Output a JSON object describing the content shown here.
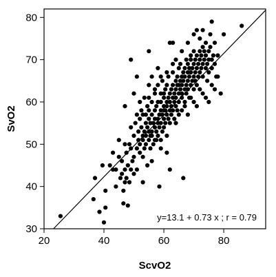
{
  "chart_data": {
    "type": "scatter",
    "xlabel": "ScvO2",
    "ylabel": "SvO2",
    "xlim": [
      20,
      94
    ],
    "ylim": [
      30,
      82
    ],
    "xticks": [
      20,
      40,
      60,
      80
    ],
    "yticks": [
      30,
      40,
      50,
      60,
      70,
      80
    ],
    "grid": false,
    "annotation": "y=13.1 + 0.73 x ; r = 0.79",
    "fit_line": {
      "intercept": 13.1,
      "slope": 0.73
    },
    "colors": {
      "points": "#000000",
      "line": "#000000",
      "frame": "#000000"
    },
    "points": [
      [
        25.5,
        33
      ],
      [
        36.5,
        37
      ],
      [
        37,
        42
      ],
      [
        38.5,
        34
      ],
      [
        39.5,
        45
      ],
      [
        40,
        31.5
      ],
      [
        40.5,
        39
      ],
      [
        40.5,
        35
      ],
      [
        42,
        45
      ],
      [
        43,
        44
      ],
      [
        44,
        44
      ],
      [
        44,
        40
      ],
      [
        45,
        47
      ],
      [
        45.5,
        42
      ],
      [
        46,
        43
      ],
      [
        46,
        46
      ],
      [
        46.5,
        36
      ],
      [
        46.5,
        39
      ],
      [
        47,
        44
      ],
      [
        47,
        41
      ],
      [
        47.5,
        48
      ],
      [
        47.5,
        42
      ],
      [
        48,
        35.5
      ],
      [
        48,
        45
      ],
      [
        48.5,
        50
      ],
      [
        48.5,
        41
      ],
      [
        49,
        49
      ],
      [
        49,
        70
      ],
      [
        49,
        44
      ],
      [
        49.5,
        46
      ],
      [
        50,
        43
      ],
      [
        50,
        47
      ],
      [
        50,
        52
      ],
      [
        50.5,
        55
      ],
      [
        51,
        49
      ],
      [
        51,
        44
      ],
      [
        51,
        66
      ],
      [
        51.5,
        51
      ],
      [
        51.5,
        53
      ],
      [
        52,
        56
      ],
      [
        52,
        48
      ],
      [
        52,
        50
      ],
      [
        52.5,
        54
      ],
      [
        52.5,
        58
      ],
      [
        53,
        52
      ],
      [
        53,
        47
      ],
      [
        53,
        57
      ],
      [
        53,
        51
      ],
      [
        53.5,
        53
      ],
      [
        53.5,
        49
      ],
      [
        53.5,
        61
      ],
      [
        54,
        55
      ],
      [
        54,
        50
      ],
      [
        54,
        52
      ],
      [
        54,
        57
      ],
      [
        54.5,
        54
      ],
      [
        54.5,
        59
      ],
      [
        54.5,
        45
      ],
      [
        55,
        53
      ],
      [
        55,
        56
      ],
      [
        55,
        51
      ],
      [
        55,
        58
      ],
      [
        55,
        64
      ],
      [
        55.5,
        52
      ],
      [
        55.5,
        55
      ],
      [
        55.5,
        49
      ],
      [
        56,
        57
      ],
      [
        56,
        53
      ],
      [
        56,
        60
      ],
      [
        56,
        46
      ],
      [
        56,
        52
      ],
      [
        56.5,
        50
      ],
      [
        56.5,
        55
      ],
      [
        57,
        58
      ],
      [
        57,
        54
      ],
      [
        57,
        56
      ],
      [
        57,
        62
      ],
      [
        57.5,
        51
      ],
      [
        57.5,
        59
      ],
      [
        57.5,
        53
      ],
      [
        58,
        56
      ],
      [
        58,
        60
      ],
      [
        58,
        52
      ],
      [
        58,
        55
      ],
      [
        58,
        64
      ],
      [
        58.5,
        57
      ],
      [
        58.5,
        54
      ],
      [
        58.5,
        40
      ],
      [
        59,
        58
      ],
      [
        59,
        62
      ],
      [
        59,
        55
      ],
      [
        59,
        51
      ],
      [
        59,
        60
      ],
      [
        59.5,
        57
      ],
      [
        59.5,
        53
      ],
      [
        59.5,
        65
      ],
      [
        60,
        59
      ],
      [
        60,
        56
      ],
      [
        60,
        61
      ],
      [
        60,
        54
      ],
      [
        60,
        62
      ],
      [
        60.5,
        58
      ],
      [
        60.5,
        63
      ],
      [
        60.5,
        55
      ],
      [
        61,
        60
      ],
      [
        61,
        57
      ],
      [
        61,
        64
      ],
      [
        61,
        52
      ],
      [
        61,
        59
      ],
      [
        61.5,
        61
      ],
      [
        61.5,
        56
      ],
      [
        61.5,
        66
      ],
      [
        62,
        58
      ],
      [
        62,
        62
      ],
      [
        62,
        60
      ],
      [
        62,
        55
      ],
      [
        62.5,
        63
      ],
      [
        62.5,
        59
      ],
      [
        62.5,
        57
      ],
      [
        63,
        61
      ],
      [
        63,
        64
      ],
      [
        63,
        58
      ],
      [
        63,
        67
      ],
      [
        63,
        74
      ],
      [
        63.5,
        60
      ],
      [
        63.5,
        62
      ],
      [
        63.5,
        56
      ],
      [
        64,
        63
      ],
      [
        64,
        65
      ],
      [
        64,
        59
      ],
      [
        64,
        61
      ],
      [
        64.5,
        64
      ],
      [
        64.5,
        66
      ],
      [
        64.5,
        58
      ],
      [
        65,
        62
      ],
      [
        65,
        68
      ],
      [
        65,
        60
      ],
      [
        65,
        64
      ],
      [
        65.5,
        65
      ],
      [
        65.5,
        63
      ],
      [
        65.5,
        69
      ],
      [
        66,
        66
      ],
      [
        66,
        61
      ],
      [
        66,
        64
      ],
      [
        66,
        62
      ],
      [
        66.5,
        67
      ],
      [
        66.5,
        65
      ],
      [
        66.5,
        42
      ],
      [
        67,
        63
      ],
      [
        67,
        68
      ],
      [
        67,
        60
      ],
      [
        67,
        66
      ],
      [
        67.5,
        64
      ],
      [
        67.5,
        70
      ],
      [
        67.5,
        62
      ],
      [
        68,
        67
      ],
      [
        68,
        65
      ],
      [
        68,
        69
      ],
      [
        68,
        63
      ],
      [
        68.5,
        66
      ],
      [
        68.5,
        68
      ],
      [
        68.5,
        61
      ],
      [
        69,
        70
      ],
      [
        69,
        64
      ],
      [
        69,
        67
      ],
      [
        69,
        71
      ],
      [
        69.5,
        65
      ],
      [
        69.5,
        68
      ],
      [
        70,
        66
      ],
      [
        70,
        69
      ],
      [
        70,
        72
      ],
      [
        70,
        63
      ],
      [
        70.5,
        67
      ],
      [
        70.5,
        70
      ],
      [
        70.5,
        65
      ],
      [
        71,
        68
      ],
      [
        71,
        77
      ],
      [
        71,
        71
      ],
      [
        71,
        64
      ],
      [
        71.5,
        66
      ],
      [
        71.5,
        69
      ],
      [
        72,
        72
      ],
      [
        72,
        67
      ],
      [
        72,
        70
      ],
      [
        72,
        75
      ],
      [
        72.5,
        68
      ],
      [
        72.5,
        71
      ],
      [
        73,
        66
      ],
      [
        73,
        73
      ],
      [
        73,
        69
      ],
      [
        73,
        77
      ],
      [
        73.5,
        70
      ],
      [
        73.5,
        72
      ],
      [
        74,
        68
      ],
      [
        74,
        71
      ],
      [
        74,
        74
      ],
      [
        74.5,
        69
      ],
      [
        74.5,
        65
      ],
      [
        75,
        72
      ],
      [
        75,
        70
      ],
      [
        75,
        67
      ],
      [
        75.5,
        73
      ],
      [
        75.5,
        76
      ],
      [
        76,
        70
      ],
      [
        76,
        68
      ],
      [
        76,
        79
      ],
      [
        76.5,
        71
      ],
      [
        77,
        69
      ],
      [
        77,
        74
      ],
      [
        77.5,
        66
      ],
      [
        78,
        71
      ],
      [
        79,
        62
      ],
      [
        80,
        76
      ],
      [
        86,
        78
      ],
      [
        62,
        74
      ],
      [
        66,
        72
      ],
      [
        64,
        70
      ],
      [
        68,
        74
      ],
      [
        70,
        76
      ],
      [
        60,
        58
      ],
      [
        58,
        68
      ],
      [
        56,
        66
      ],
      [
        55,
        72
      ],
      [
        52,
        60
      ],
      [
        50,
        62
      ],
      [
        57,
        51
      ],
      [
        59,
        49
      ],
      [
        61,
        48
      ],
      [
        53,
        41
      ],
      [
        47,
        59
      ],
      [
        62,
        44
      ],
      [
        64,
        55
      ],
      [
        66,
        58
      ],
      [
        68,
        57
      ],
      [
        70,
        60
      ],
      [
        72,
        63
      ],
      [
        74,
        61
      ],
      [
        76,
        64
      ],
      [
        78,
        66
      ],
      [
        55,
        61
      ],
      [
        57,
        63
      ],
      [
        59,
        66
      ],
      [
        61,
        67
      ],
      [
        63,
        69
      ],
      [
        51,
        57
      ],
      [
        49,
        54
      ],
      [
        47,
        50
      ],
      [
        45,
        51
      ],
      [
        43,
        48
      ],
      [
        71,
        59
      ],
      [
        73,
        62
      ],
      [
        75,
        60
      ],
      [
        77,
        63
      ],
      [
        65,
        57
      ],
      [
        67,
        59
      ],
      [
        69,
        61
      ]
    ]
  }
}
